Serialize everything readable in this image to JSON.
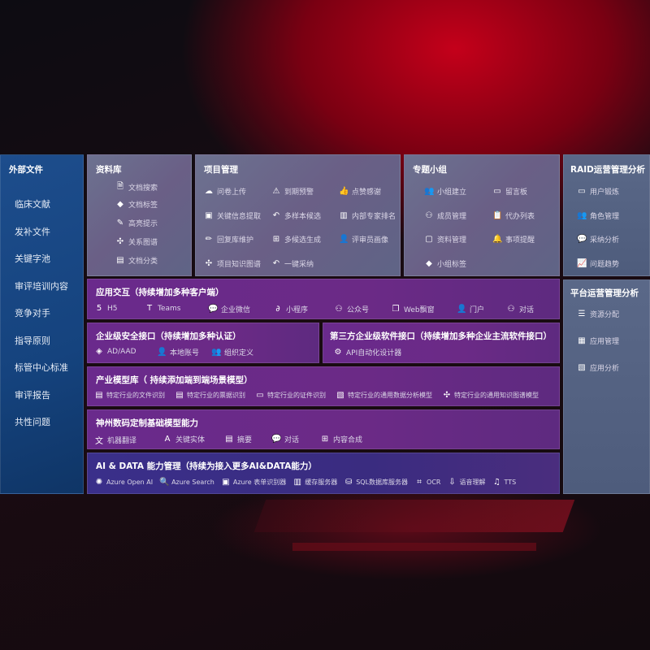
{
  "left": {
    "title": "外部文件",
    "items": [
      "临床文献",
      "发补文件",
      "关键字池",
      "审评培训内容",
      "竞争对手",
      "指导原则",
      "标管中心标准",
      "审评报告",
      "共性问题"
    ]
  },
  "library": {
    "title": "资料库",
    "items": [
      {
        "icon": "doc-search-icon",
        "label": "文档搜索"
      },
      {
        "icon": "tag-icon",
        "label": "文档标签"
      },
      {
        "icon": "pen-icon",
        "label": "高亮提示"
      },
      {
        "icon": "graph-icon",
        "label": "关系图谱"
      },
      {
        "icon": "docs-icon",
        "label": "文档分类"
      }
    ]
  },
  "project": {
    "title": "项目管理",
    "items": [
      {
        "icon": "cloud-upload-icon",
        "label": "问卷上传"
      },
      {
        "icon": "alarm-icon",
        "label": "到期预警"
      },
      {
        "icon": "thumbs-up-icon",
        "label": "点赞感谢"
      },
      {
        "icon": "window-icon",
        "label": "关键信息提取"
      },
      {
        "icon": "reply-icon",
        "label": "多样本候选"
      },
      {
        "icon": "ranking-icon",
        "label": "内部专家排名"
      },
      {
        "icon": "edit-icon",
        "label": "回复库维护"
      },
      {
        "icon": "puzzle-icon",
        "label": "多候选生成"
      },
      {
        "icon": "user-icon",
        "label": "评审员画像"
      },
      {
        "icon": "graph-icon",
        "label": "项目知识图谱"
      },
      {
        "icon": "reply-icon",
        "label": "一键采纳"
      }
    ]
  },
  "topic": {
    "title": "专题小组",
    "items": [
      {
        "icon": "group-icon",
        "label": "小组建立"
      },
      {
        "icon": "bbs-icon",
        "label": "留言板"
      },
      {
        "icon": "user-add-icon",
        "label": "成员管理"
      },
      {
        "icon": "clipboard-icon",
        "label": "代办列表"
      },
      {
        "icon": "folder-icon",
        "label": "资料管理"
      },
      {
        "icon": "bell-icon",
        "label": "事项提醒"
      },
      {
        "icon": "tag-icon",
        "label": "小组标签"
      }
    ]
  },
  "raid": {
    "title": "RAID运营管理分析",
    "items": [
      {
        "icon": "id-card-icon",
        "label": "用户锻炼"
      },
      {
        "icon": "group-icon",
        "label": "角色管理"
      },
      {
        "icon": "qa-icon",
        "label": "采纳分析"
      },
      {
        "icon": "trend-icon",
        "label": "问题趋势"
      }
    ]
  },
  "platform": {
    "title": "平台运营管理分析",
    "items": [
      {
        "icon": "checklist-icon",
        "label": "资源分配"
      },
      {
        "icon": "apps-icon",
        "label": "应用管理"
      },
      {
        "icon": "analytics-icon",
        "label": "应用分析"
      }
    ]
  },
  "app": {
    "title": "应用交互（持续增加多种客户端）",
    "items": [
      {
        "icon": "html5-icon",
        "label": "H5"
      },
      {
        "icon": "teams-icon",
        "label": "Teams"
      },
      {
        "icon": "wechat-work-icon",
        "label": "企业微信"
      },
      {
        "icon": "miniprogram-icon",
        "label": "小程序"
      },
      {
        "icon": "official-account-icon",
        "label": "公众号"
      },
      {
        "icon": "web-window-icon",
        "label": "Web飘窗"
      },
      {
        "icon": "portal-icon",
        "label": "门户"
      },
      {
        "icon": "chat-users-icon",
        "label": "对话"
      }
    ]
  },
  "security": {
    "title": "企业级安全接口（持续增加多种认证）",
    "items": [
      {
        "icon": "ad-icon",
        "label": "AD/AAD"
      },
      {
        "icon": "local-account-icon",
        "label": "本地账号"
      },
      {
        "icon": "org-icon",
        "label": "组织定义"
      }
    ]
  },
  "thirdparty": {
    "title": "第三方企业级软件接口（持续增加多种企业主流软件接口）",
    "items": [
      {
        "icon": "api-gear-icon",
        "label": "API自动化设计器"
      }
    ]
  },
  "industry": {
    "title": "产业模型库（ 持续添加端到端场景模型）",
    "items": [
      {
        "icon": "file-icon",
        "label": "特定行业的文件识别"
      },
      {
        "icon": "receipt-icon",
        "label": "特定行业的票据识别"
      },
      {
        "icon": "id-card-icon",
        "label": "特定行业的证件识别"
      },
      {
        "icon": "chart-icon",
        "label": "特定行业的通用数据分析模型"
      },
      {
        "icon": "graph-icon",
        "label": "特定行业的通用知识图谱模型"
      }
    ]
  },
  "base": {
    "title": "神州数码定制基础模型能力",
    "items": [
      {
        "icon": "translate-icon",
        "label": "机器翻译"
      },
      {
        "icon": "entity-icon",
        "label": "关键实体"
      },
      {
        "icon": "summary-icon",
        "label": "摘要"
      },
      {
        "icon": "chat-icon",
        "label": "对话"
      },
      {
        "icon": "puzzle-icon",
        "label": "内容合成"
      }
    ]
  },
  "ai": {
    "title": "AI & DATA 能力管理（持续为接入更多AI&DATA能力）",
    "items": [
      {
        "icon": "openai-icon",
        "label": "Azure Open AI"
      },
      {
        "icon": "search-doc-icon",
        "label": "Azure Search"
      },
      {
        "icon": "form-recognizer-icon",
        "label": "Azure 表单识别器"
      },
      {
        "icon": "cache-server-icon",
        "label": "缓存服务器"
      },
      {
        "icon": "sql-icon",
        "label": "SQL数据库服务器"
      },
      {
        "icon": "ocr-icon",
        "label": "OCR"
      },
      {
        "icon": "speech-icon",
        "label": "语音理解"
      },
      {
        "icon": "tts-icon",
        "label": "TTS"
      }
    ]
  }
}
